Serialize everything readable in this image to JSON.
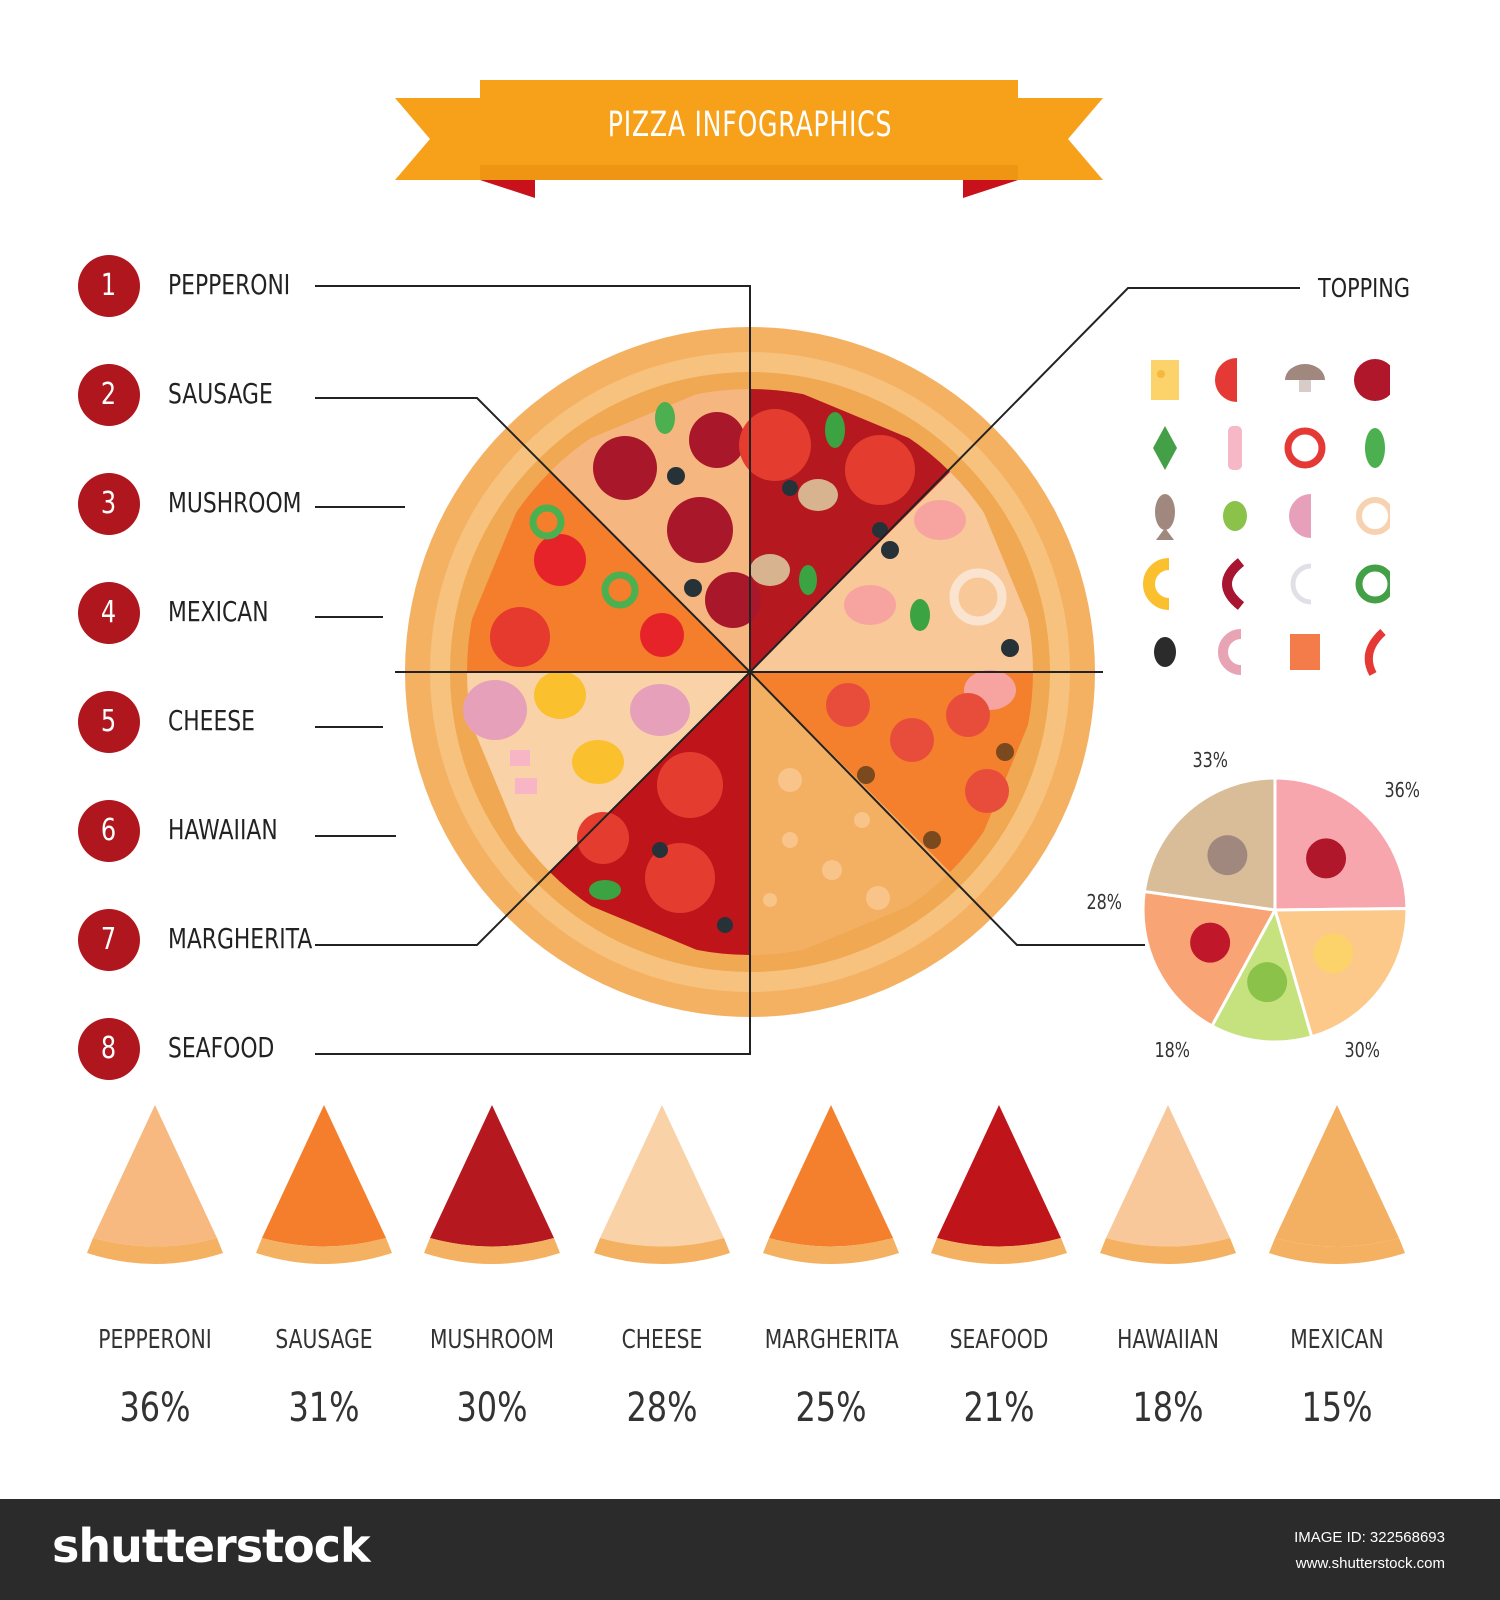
{
  "title": "PIZZA INFOGRAPHICS",
  "colors": {
    "accent_orange": "#f7a11a",
    "ribbon_dark": "#e08a12",
    "ribbon_fold": "#c8111b",
    "badge_red": "#b0161d",
    "crust": "#f4b162",
    "crust_inner": "#f7c27d",
    "footer_bg": "#2b2b2b"
  },
  "legend": [
    {
      "num": "1",
      "label": "PEPPERONI"
    },
    {
      "num": "2",
      "label": "SAUSAGE"
    },
    {
      "num": "3",
      "label": "MUSHROOM"
    },
    {
      "num": "4",
      "label": "MEXICAN"
    },
    {
      "num": "5",
      "label": "CHEESE"
    },
    {
      "num": "6",
      "label": "HAWAIIAN"
    },
    {
      "num": "7",
      "label": "MARGHERITA"
    },
    {
      "num": "8",
      "label": "SEAFOOD"
    }
  ],
  "topping": {
    "title": "TOPPING",
    "icons": [
      "cheese-icon",
      "tomato-icon",
      "mushroom-icon",
      "salami-icon",
      "arugula-icon",
      "bacon-icon",
      "red-pepper-ring-icon",
      "basil-leaf-icon",
      "fish-icon",
      "green-olive-icon",
      "ham-icon",
      "onion-ring-icon",
      "pineapple-icon",
      "sausage-icon",
      "squid-ring-icon",
      "green-pepper-ring-icon",
      "black-olive-icon",
      "shrimp-icon",
      "salmon-icon",
      "chili-pepper-icon"
    ]
  },
  "chart_data": [
    {
      "type": "pie",
      "categories": [
        "salami",
        "cheese",
        "olive",
        "sausage",
        "mushroom"
      ],
      "values": [
        36,
        30,
        18,
        28,
        33
      ],
      "labels": [
        "36%",
        "30%",
        "18%",
        "28%",
        "33%"
      ],
      "colors": [
        "#f8a6ad",
        "#fcc98a",
        "#c6e27e",
        "#f9a474",
        "#d9bd98"
      ],
      "title": ""
    },
    {
      "type": "bar",
      "categories": [
        "PEPPERONI",
        "SAUSAGE",
        "MUSHROOM",
        "CHEESE",
        "MARGHERITA",
        "SEAFOOD",
        "HAWAIIAN",
        "MEXICAN"
      ],
      "values": [
        36,
        31,
        30,
        28,
        25,
        21,
        18,
        15
      ],
      "labels": [
        "36%",
        "31%",
        "30%",
        "28%",
        "25%",
        "21%",
        "18%",
        "15%"
      ],
      "title": ""
    }
  ],
  "footer": {
    "brand": "shutterstock",
    "image_id": "IMAGE ID: 322568693",
    "url": "www.shutterstock.com"
  }
}
